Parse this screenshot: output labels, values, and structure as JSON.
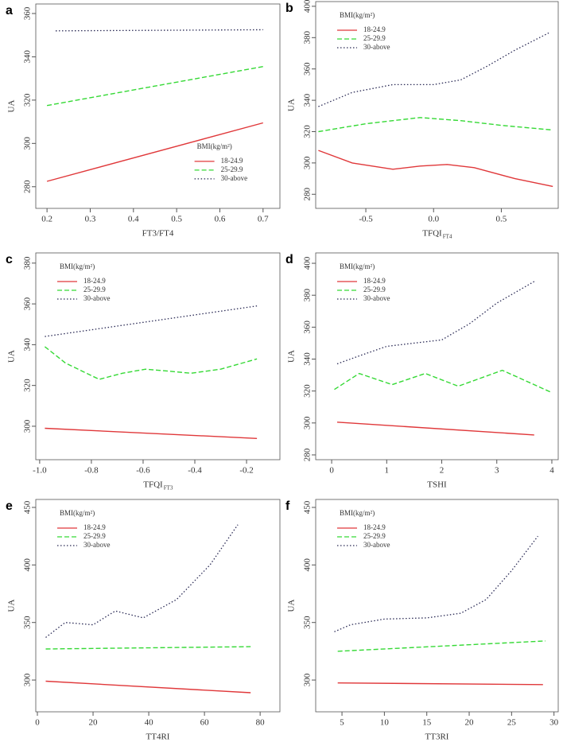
{
  "chart_data": [
    {
      "type": "line",
      "label": "a",
      "xlabel": "FT3/FT4",
      "ylabel": "UA",
      "legend_title": "BMI(kg/m²)",
      "legend_loc": "lower right",
      "xlim": [
        0.174,
        0.739
      ],
      "ylim": [
        270,
        364.4
      ],
      "xticks": [
        0.2,
        0.3,
        0.4,
        0.5,
        0.6,
        0.7
      ],
      "yticks": [
        280,
        300,
        320,
        340,
        360
      ],
      "series": [
        {
          "name": "18-24.9",
          "color": "#e0383a",
          "dash": "solid",
          "x": [
            0.2,
            0.7
          ],
          "values": [
            282.5,
            309.5
          ]
        },
        {
          "name": "25-29.9",
          "color": "#35d935",
          "dash": "dashed",
          "x": [
            0.2,
            0.7
          ],
          "values": [
            317.5,
            335.5
          ]
        },
        {
          "name": "30-above",
          "color": "#2a2a55",
          "dash": "dotted",
          "x": [
            0.22,
            0.7
          ],
          "values": [
            352,
            352.5
          ]
        }
      ]
    },
    {
      "type": "line",
      "label": "b",
      "xlabel": "TFQI",
      "xlabel_sub": "FT4",
      "ylabel": "UA",
      "legend_title": "BMI(kg/m²)",
      "legend_loc": "upper left",
      "xlim": [
        -0.87,
        0.92
      ],
      "ylim": [
        271,
        403
      ],
      "xticks": [
        -0.5,
        {
          "value": 0,
          "label": "0.0"
        },
        0.5
      ],
      "yticks": [
        280,
        300,
        320,
        340,
        360,
        380,
        400
      ],
      "series": [
        {
          "name": "18-24.9",
          "color": "#e0383a",
          "dash": "solid",
          "x": [
            -0.85,
            -0.6,
            -0.3,
            -0.1,
            0.1,
            0.3,
            0.6,
            0.88
          ],
          "values": [
            308,
            300,
            296,
            298,
            299,
            297,
            290,
            285
          ]
        },
        {
          "name": "25-29.9",
          "color": "#35d935",
          "dash": "dashed",
          "x": [
            -0.85,
            -0.5,
            -0.1,
            0.2,
            0.5,
            0.88
          ],
          "values": [
            320,
            325,
            329,
            327,
            324,
            321
          ]
        },
        {
          "name": "30-above",
          "color": "#2a2a55",
          "dash": "dotted",
          "x": [
            -0.85,
            -0.6,
            -0.3,
            0,
            0.2,
            0.4,
            0.6,
            0.85
          ],
          "values": [
            336,
            345,
            350,
            350,
            353,
            362,
            372,
            383
          ]
        }
      ]
    },
    {
      "type": "line",
      "label": "c",
      "xlabel": "TFQI",
      "xlabel_sub": "FT3",
      "ylabel": "UA",
      "legend_title": "BMI(kg/m²)",
      "legend_loc": "upper left",
      "xlim": [
        -1.015,
        -0.071
      ],
      "ylim": [
        283.6,
        385
      ],
      "xticks": [
        {
          "value": -1,
          "label": "-1.0"
        },
        -0.8,
        -0.6,
        -0.4,
        -0.2
      ],
      "yticks": [
        300,
        320,
        340,
        360,
        380
      ],
      "series": [
        {
          "name": "18-24.9",
          "color": "#e0383a",
          "dash": "solid",
          "x": [
            -0.98,
            -0.16
          ],
          "values": [
            299,
            294
          ]
        },
        {
          "name": "25-29.9",
          "color": "#35d935",
          "dash": "dashed",
          "x": [
            -0.98,
            -0.9,
            -0.77,
            -0.68,
            -0.59,
            -0.5,
            -0.415,
            -0.3,
            -0.16
          ],
          "values": [
            339,
            331,
            323,
            326,
            328,
            327,
            326,
            328,
            333
          ]
        },
        {
          "name": "30-above",
          "color": "#2a2a55",
          "dash": "dotted",
          "x": [
            -0.98,
            -0.16
          ],
          "values": [
            344,
            359
          ]
        }
      ]
    },
    {
      "type": "line",
      "label": "d",
      "xlabel": "TSHI",
      "ylabel": "UA",
      "legend_title": "BMI(kg/m²)",
      "legend_loc": "upper left",
      "xlim": [
        -0.29,
        4.116
      ],
      "ylim": [
        277,
        406.5
      ],
      "xticks": [
        0,
        1,
        2,
        3,
        4
      ],
      "yticks": [
        280,
        300,
        320,
        340,
        360,
        380,
        400
      ],
      "series": [
        {
          "name": "18-24.9",
          "color": "#e0383a",
          "dash": "solid",
          "x": [
            0.1,
            3.68
          ],
          "values": [
            300.5,
            292.5
          ]
        },
        {
          "name": "25-29.9",
          "color": "#35d935",
          "dash": "dashed",
          "x": [
            0.05,
            0.5,
            1.1,
            1.7,
            2.3,
            3.1,
            4
          ],
          "values": [
            321,
            331,
            324,
            331,
            323,
            333,
            319
          ]
        },
        {
          "name": "30-above",
          "color": "#2a2a55",
          "dash": "dotted",
          "x": [
            0.1,
            0.5,
            1,
            1.5,
            2,
            2.5,
            3,
            3.7
          ],
          "values": [
            337,
            342,
            348,
            350,
            352,
            362,
            375,
            389
          ]
        }
      ]
    },
    {
      "type": "line",
      "label": "e",
      "xlabel": "TT4RI",
      "ylabel": "UA",
      "legend_title": "BMI(kg/m²)",
      "legend_loc": "upper left",
      "xlim": [
        -0.57,
        87.1
      ],
      "ylim": [
        272.4,
        456.9
      ],
      "xticks": [
        0,
        20,
        40,
        60,
        80
      ],
      "yticks": [
        300,
        350,
        400,
        450
      ],
      "series": [
        {
          "name": "18-24.9",
          "color": "#e0383a",
          "dash": "solid",
          "x": [
            3,
            76.6
          ],
          "values": [
            299,
            289
          ]
        },
        {
          "name": "25-29.9",
          "color": "#35d935",
          "dash": "dashed",
          "x": [
            3,
            76.6
          ],
          "values": [
            327,
            329
          ]
        },
        {
          "name": "30-above",
          "color": "#2a2a55",
          "dash": "dotted",
          "x": [
            3,
            10,
            20,
            28,
            38,
            50,
            62,
            72
          ],
          "values": [
            337,
            350,
            348,
            360,
            354,
            370,
            400,
            435
          ]
        }
      ]
    },
    {
      "type": "line",
      "label": "f",
      "xlabel": "TT3RI",
      "ylabel": "UA",
      "legend_title": "BMI(kg/m²)",
      "legend_loc": "upper left",
      "xlim": [
        1.9,
        30.5
      ],
      "ylim": [
        272.4,
        456.9
      ],
      "xticks": [
        5,
        10,
        15,
        20,
        25,
        30
      ],
      "yticks": [
        300,
        350,
        400,
        450
      ],
      "series": [
        {
          "name": "18-24.9",
          "color": "#e0383a",
          "dash": "solid",
          "x": [
            4.5,
            28.7
          ],
          "values": [
            297.5,
            296
          ]
        },
        {
          "name": "25-29.9",
          "color": "#35d935",
          "dash": "dashed",
          "x": [
            4.5,
            29
          ],
          "values": [
            325,
            334
          ]
        },
        {
          "name": "30-above",
          "color": "#2a2a55",
          "dash": "dotted",
          "x": [
            4.1,
            6,
            10,
            15,
            19,
            22,
            25,
            28.1
          ],
          "values": [
            342,
            348,
            353,
            354,
            358,
            370,
            395,
            425
          ]
        }
      ]
    }
  ]
}
